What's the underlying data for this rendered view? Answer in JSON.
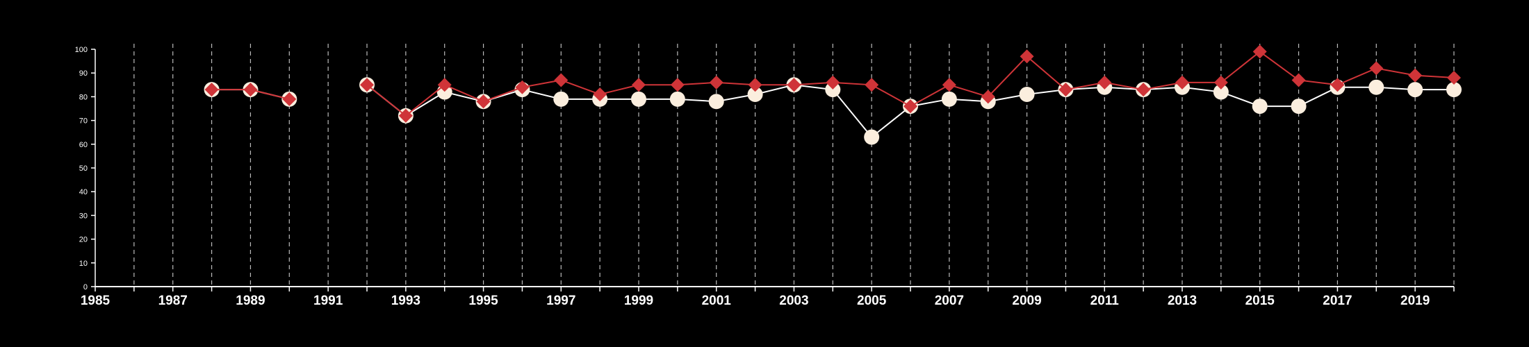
{
  "chart_data": {
    "type": "line",
    "title": "",
    "xlabel": "",
    "ylabel": "",
    "xlim": [
      1985,
      2020
    ],
    "ylim": [
      0,
      100
    ],
    "x_ticks": [
      1985,
      1987,
      1989,
      1991,
      1993,
      1995,
      1997,
      1999,
      2001,
      2003,
      2005,
      2007,
      2009,
      2011,
      2013,
      2015,
      2017,
      2019
    ],
    "y_ticks": [
      0,
      10,
      20,
      30,
      40,
      50,
      60,
      70,
      80,
      90,
      100
    ],
    "grid": "vertical dashed lines at every year",
    "legend": "none",
    "x": [
      1985,
      1986,
      1987,
      1988,
      1989,
      1990,
      1991,
      1992,
      1993,
      1994,
      1995,
      1996,
      1997,
      1998,
      1999,
      2000,
      2001,
      2002,
      2003,
      2004,
      2005,
      2006,
      2007,
      2008,
      2009,
      2010,
      2011,
      2012,
      2013,
      2014,
      2015,
      2016,
      2017,
      2018,
      2019,
      2020
    ],
    "series": [
      {
        "color": "#fbeede",
        "line_color": "#ffffff",
        "marker": "circle",
        "values": [
          null,
          null,
          null,
          83,
          83,
          79,
          null,
          85,
          72,
          82,
          78,
          83,
          79,
          79,
          79,
          79,
          78,
          81,
          85,
          83,
          63,
          76,
          79,
          78,
          81,
          83,
          84,
          83,
          84,
          82,
          76,
          76,
          84,
          84,
          83,
          83
        ]
      },
      {
        "color": "#cf3438",
        "line_color": "#cf3438",
        "marker": "diamond",
        "values": [
          null,
          null,
          null,
          83,
          83,
          79,
          null,
          85,
          72,
          85,
          78,
          84,
          87,
          81,
          85,
          85,
          86,
          85,
          85,
          86,
          85,
          76,
          85,
          80,
          97,
          83,
          86,
          83,
          86,
          86,
          99,
          87,
          85,
          92,
          89,
          88
        ]
      }
    ]
  },
  "colors": {
    "background": "#000000",
    "axis": "#ffffff",
    "grid": "#bbbbbb"
  }
}
